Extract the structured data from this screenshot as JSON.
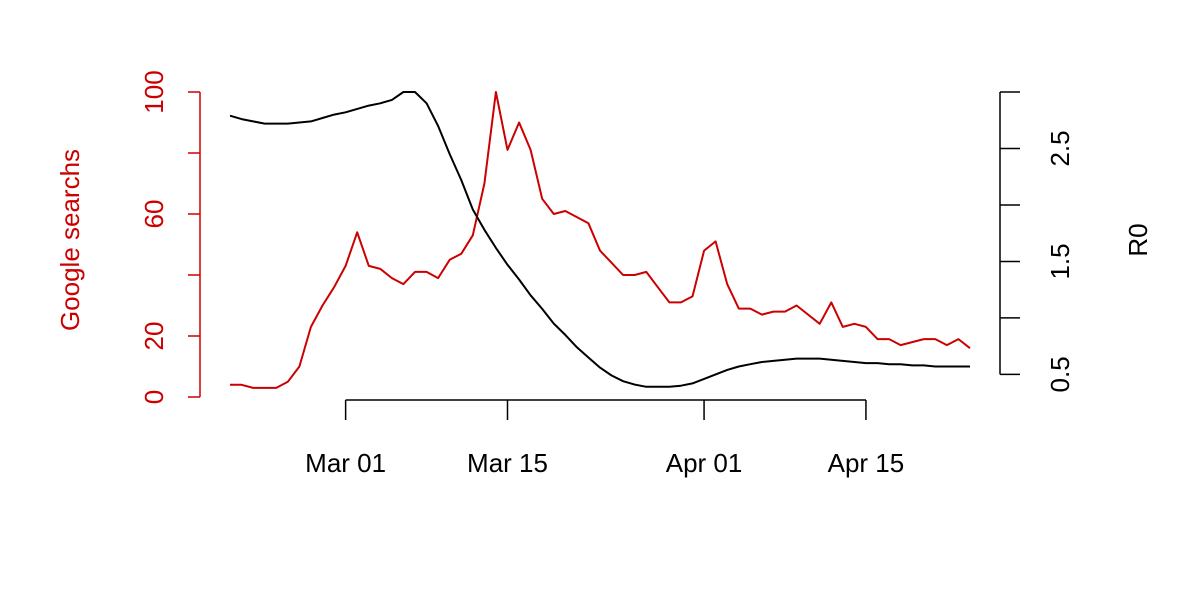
{
  "chart_data": {
    "type": "line",
    "ylabel": "Google searchs",
    "y2label": "R0",
    "ylabel_color": "#cc0000",
    "categories": [
      "Feb 20",
      "Feb 21",
      "Feb 22",
      "Feb 23",
      "Feb 24",
      "Feb 25",
      "Feb 26",
      "Feb 27",
      "Feb 28",
      "Feb 29",
      "Mar 01",
      "Mar 02",
      "Mar 03",
      "Mar 04",
      "Mar 05",
      "Mar 06",
      "Mar 07",
      "Mar 08",
      "Mar 09",
      "Mar 10",
      "Mar 11",
      "Mar 12",
      "Mar 13",
      "Mar 14",
      "Mar 15",
      "Mar 16",
      "Mar 17",
      "Mar 18",
      "Mar 19",
      "Mar 20",
      "Mar 21",
      "Mar 22",
      "Mar 23",
      "Mar 24",
      "Mar 25",
      "Mar 26",
      "Mar 27",
      "Mar 28",
      "Mar 29",
      "Mar 30",
      "Mar 31",
      "Apr 01",
      "Apr 02",
      "Apr 03",
      "Apr 04",
      "Apr 05",
      "Apr 06",
      "Apr 07",
      "Apr 08",
      "Apr 09",
      "Apr 10",
      "Apr 11",
      "Apr 12",
      "Apr 13",
      "Apr 14",
      "Apr 15",
      "Apr 16",
      "Apr 17",
      "Apr 18",
      "Apr 19",
      "Apr 20",
      "Apr 21",
      "Apr 22",
      "Apr 23",
      "Apr 24"
    ],
    "xticks": [
      "Mar 01",
      "Mar 15",
      "Apr 01",
      "Apr 15"
    ],
    "series": [
      {
        "color": "#cc0000",
        "values": [
          4,
          4,
          3,
          3,
          3,
          5,
          10,
          23,
          30,
          36,
          43,
          54,
          43,
          42,
          39,
          37,
          41,
          41,
          39,
          45,
          47,
          53,
          70,
          100,
          81,
          90,
          81,
          65,
          60,
          61,
          59,
          57,
          48,
          44,
          40,
          40,
          41,
          36,
          31,
          31,
          33,
          48,
          51,
          37,
          29,
          29,
          27,
          28,
          28,
          30,
          27,
          24,
          31,
          23,
          24,
          23,
          19,
          19,
          17,
          18,
          19,
          19,
          17,
          19,
          16
        ]
      },
      {
        "color": "#000000",
        "axis": "y2",
        "values": [
          2.79,
          2.76,
          2.74,
          2.72,
          2.72,
          2.72,
          2.73,
          2.74,
          2.77,
          2.8,
          2.82,
          2.85,
          2.88,
          2.9,
          2.93,
          3.0,
          3.0,
          2.9,
          2.7,
          2.45,
          2.22,
          1.96,
          1.78,
          1.62,
          1.47,
          1.34,
          1.2,
          1.08,
          0.95,
          0.85,
          0.74,
          0.65,
          0.56,
          0.49,
          0.44,
          0.41,
          0.39,
          0.39,
          0.39,
          0.4,
          0.42,
          0.46,
          0.5,
          0.54,
          0.57,
          0.59,
          0.61,
          0.62,
          0.63,
          0.64,
          0.64,
          0.64,
          0.63,
          0.62,
          0.61,
          0.6,
          0.6,
          0.59,
          0.59,
          0.58,
          0.58,
          0.57,
          0.57,
          0.57,
          0.57
        ]
      }
    ],
    "ylim": [
      0,
      100
    ],
    "yticks": [
      0,
      20,
      {
        "value": 40,
        "label": null
      },
      60,
      {
        "value": 80,
        "label": null
      },
      100
    ],
    "y2lim": [
      0.3,
      3.0
    ],
    "y2ticks": [
      0.5,
      {
        "value": 1,
        "label": null
      },
      1.5,
      {
        "value": 2,
        "label": null
      },
      2.5,
      {
        "value": 3,
        "label": null
      }
    ]
  }
}
